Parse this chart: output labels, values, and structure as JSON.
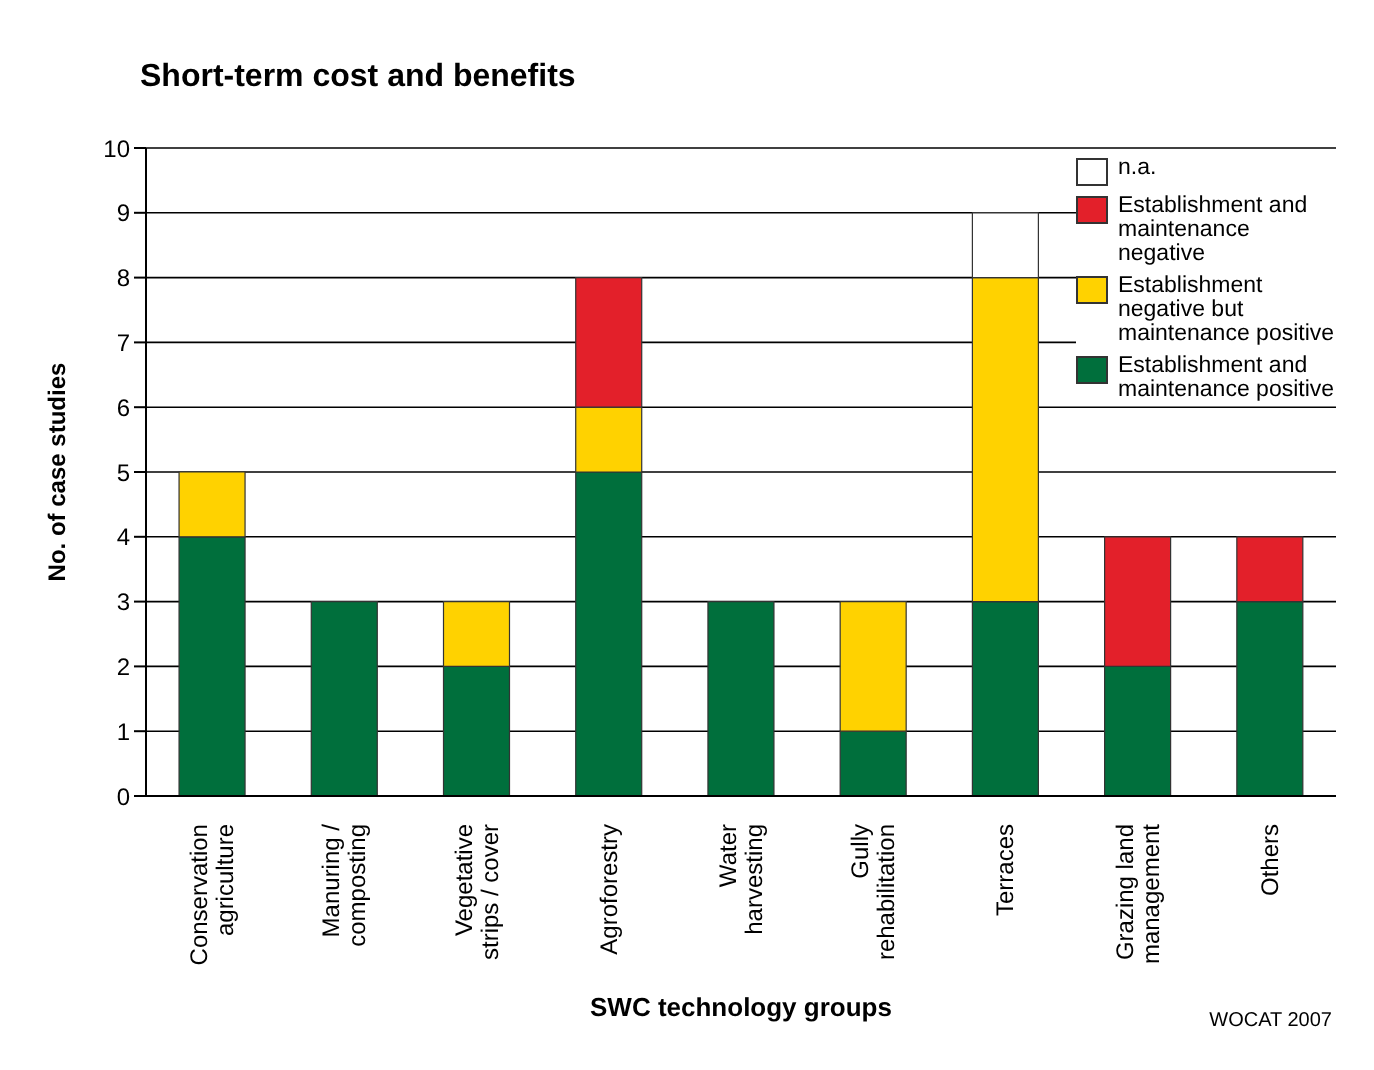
{
  "chart_data": {
    "type": "bar",
    "title": "Short-term cost and benefits",
    "xlabel": "SWC technology groups",
    "ylabel": "No. of case studies",
    "categories": [
      "Conservation agriculture",
      "Manuring / composting",
      "Vegetative strips / cover",
      "Agroforestry",
      "Water harvesting",
      "Gully rehabilitation",
      "Terraces",
      "Grazing land management",
      "Others"
    ],
    "stacked": true,
    "ylim": [
      0,
      10
    ],
    "yticks": [
      0,
      1,
      2,
      3,
      4,
      5,
      6,
      7,
      8,
      9,
      10
    ],
    "grid": "y",
    "legend": "top right",
    "series": [
      {
        "name": "Establishment and maintenance positive",
        "color": "#006f3c",
        "values": [
          4,
          3,
          2,
          5,
          3,
          1,
          3,
          2,
          3
        ]
      },
      {
        "name": "Establishment negative but maintenance positive",
        "color": "#ffd200",
        "values": [
          1,
          0,
          1,
          1,
          0,
          2,
          5,
          0,
          0
        ]
      },
      {
        "name": "Establishment and maintenance negative",
        "color": "#e3202a",
        "values": [
          0,
          0,
          0,
          2,
          0,
          0,
          0,
          2,
          1
        ]
      },
      {
        "name": "n.a.",
        "color": "#ffffff",
        "values": [
          0,
          0,
          0,
          0,
          0,
          0,
          1,
          0,
          0
        ]
      }
    ],
    "annotations": [
      "WOCAT 2007"
    ]
  }
}
